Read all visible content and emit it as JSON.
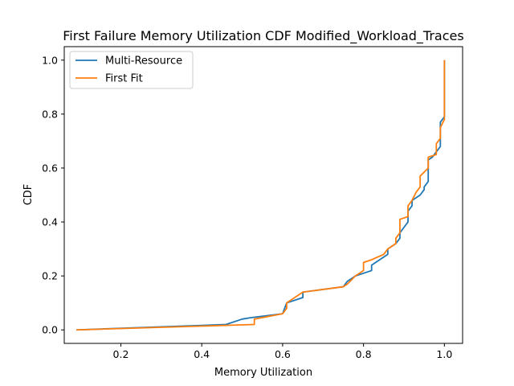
{
  "chart_data": {
    "type": "line",
    "title": "First Failure Memory Utilization CDF Modified_Workload_Traces",
    "xlabel": "Memory Utilization",
    "ylabel": "CDF",
    "xlim": [
      0.06,
      1.045
    ],
    "ylim": [
      -0.05,
      1.05
    ],
    "xticks": [
      0.2,
      0.4,
      0.6,
      0.8,
      1.0
    ],
    "xtick_labels": [
      "0.2",
      "0.4",
      "0.6",
      "0.8",
      "1.0"
    ],
    "yticks": [
      0.0,
      0.2,
      0.4,
      0.6,
      0.8,
      1.0
    ],
    "ytick_labels": [
      "0.0",
      "0.2",
      "0.4",
      "0.6",
      "0.8",
      "1.0"
    ],
    "grid": false,
    "legend_position": "top-left",
    "series": [
      {
        "name": "Multi-Resource",
        "color": "#1f77b4",
        "points": [
          [
            0.09,
            0.0
          ],
          [
            0.46,
            0.02
          ],
          [
            0.5,
            0.04
          ],
          [
            0.52,
            0.045
          ],
          [
            0.6,
            0.06
          ],
          [
            0.61,
            0.1
          ],
          [
            0.65,
            0.12
          ],
          [
            0.65,
            0.14
          ],
          [
            0.75,
            0.16
          ],
          [
            0.76,
            0.18
          ],
          [
            0.78,
            0.2
          ],
          [
            0.82,
            0.22
          ],
          [
            0.82,
            0.24
          ],
          [
            0.84,
            0.26
          ],
          [
            0.86,
            0.28
          ],
          [
            0.86,
            0.3
          ],
          [
            0.88,
            0.32
          ],
          [
            0.89,
            0.34
          ],
          [
            0.89,
            0.36
          ],
          [
            0.9,
            0.38
          ],
          [
            0.91,
            0.4
          ],
          [
            0.91,
            0.44
          ],
          [
            0.92,
            0.46
          ],
          [
            0.92,
            0.48
          ],
          [
            0.94,
            0.5
          ],
          [
            0.95,
            0.52
          ],
          [
            0.95,
            0.53
          ],
          [
            0.96,
            0.55
          ],
          [
            0.96,
            0.63
          ],
          [
            0.97,
            0.64
          ],
          [
            0.98,
            0.66
          ],
          [
            0.99,
            0.68
          ],
          [
            0.99,
            0.7
          ],
          [
            0.99,
            0.77
          ],
          [
            1.0,
            0.79
          ],
          [
            1.0,
            1.0
          ]
        ]
      },
      {
        "name": "First Fit",
        "color": "#ff7f0e",
        "points": [
          [
            0.09,
            0.0
          ],
          [
            0.53,
            0.02
          ],
          [
            0.53,
            0.04
          ],
          [
            0.6,
            0.06
          ],
          [
            0.61,
            0.08
          ],
          [
            0.61,
            0.1
          ],
          [
            0.65,
            0.14
          ],
          [
            0.75,
            0.16
          ],
          [
            0.76,
            0.17
          ],
          [
            0.78,
            0.2
          ],
          [
            0.8,
            0.22
          ],
          [
            0.8,
            0.25
          ],
          [
            0.82,
            0.26
          ],
          [
            0.85,
            0.28
          ],
          [
            0.86,
            0.3
          ],
          [
            0.88,
            0.32
          ],
          [
            0.88,
            0.34
          ],
          [
            0.89,
            0.36
          ],
          [
            0.89,
            0.41
          ],
          [
            0.91,
            0.42
          ],
          [
            0.91,
            0.46
          ],
          [
            0.92,
            0.48
          ],
          [
            0.93,
            0.51
          ],
          [
            0.94,
            0.53
          ],
          [
            0.94,
            0.57
          ],
          [
            0.96,
            0.6
          ],
          [
            0.96,
            0.64
          ],
          [
            0.98,
            0.65
          ],
          [
            0.98,
            0.69
          ],
          [
            0.99,
            0.71
          ],
          [
            0.99,
            0.75
          ],
          [
            1.0,
            0.78
          ],
          [
            1.0,
            1.0
          ]
        ]
      }
    ]
  }
}
